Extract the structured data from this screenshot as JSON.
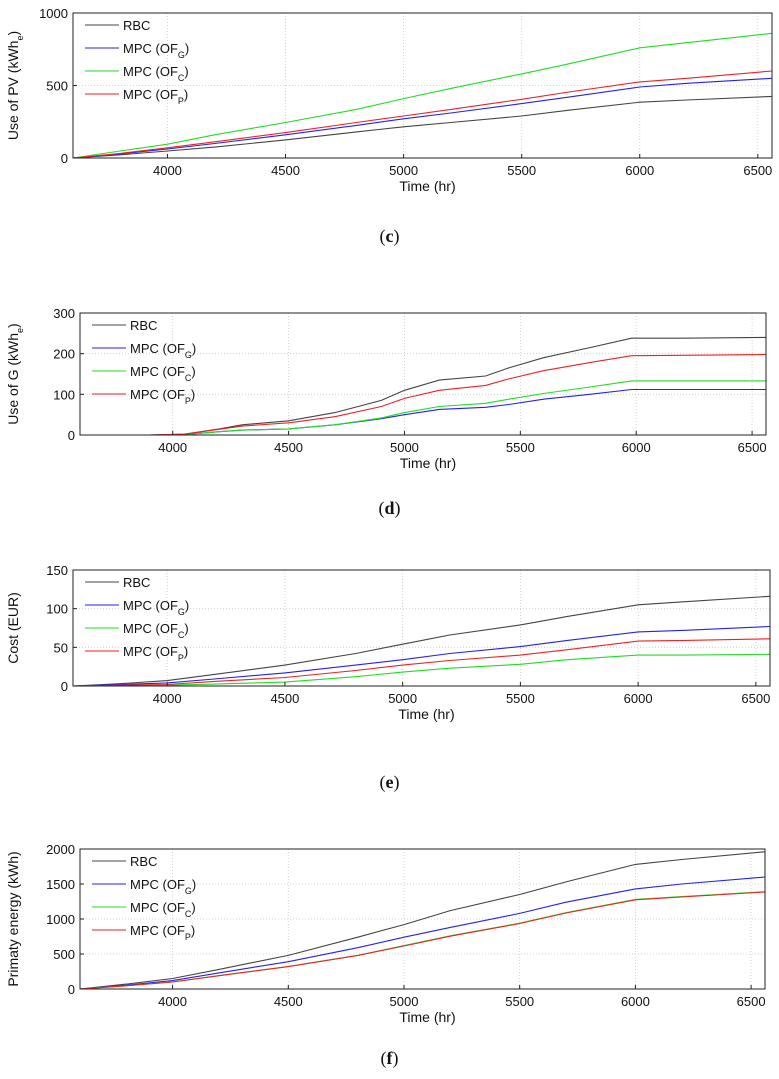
{
  "chart_data": [
    {
      "id": "c",
      "type": "line",
      "caption": "c",
      "title": "",
      "xlabel": "Time (hr)",
      "ylabel": "Use of PV (kWh",
      "ylabel_sub": "e",
      "ylabel_end": ")",
      "xlim": [
        3600,
        6560
      ],
      "ylim": [
        0,
        1000
      ],
      "xticks": [
        4000,
        4500,
        5000,
        5500,
        6000,
        6500
      ],
      "yticks": [
        0,
        500,
        1000
      ],
      "grid": true,
      "legend_position": "top-left",
      "x": [
        3600,
        3800,
        4000,
        4200,
        4500,
        4800,
        5000,
        5200,
        5500,
        5700,
        6000,
        6200,
        6560
      ],
      "series": [
        {
          "name": "RBC",
          "label_main": "RBC",
          "label_sub": "",
          "color": "#444444",
          "values": [
            0,
            22,
            48,
            75,
            125,
            180,
            215,
            245,
            290,
            330,
            385,
            400,
            425
          ]
        },
        {
          "name": "MPC (OFG)",
          "label_main": "MPC (OF",
          "label_sub": "G",
          "color": "#2222ee",
          "values": [
            0,
            28,
            62,
            100,
            160,
            225,
            270,
            310,
            375,
            420,
            490,
            515,
            550
          ]
        },
        {
          "name": "MPC (OFC)",
          "label_main": "MPC (OF",
          "label_sub": "C",
          "color": "#22dd22",
          "values": [
            0,
            48,
            95,
            160,
            245,
            335,
            410,
            480,
            580,
            650,
            760,
            795,
            860
          ]
        },
        {
          "name": "MPC (OFP)",
          "label_main": "MPC (OF",
          "label_sub": "P",
          "color": "#ee2222",
          "values": [
            0,
            32,
            70,
            112,
            175,
            245,
            290,
            335,
            405,
            455,
            525,
            550,
            600
          ]
        }
      ]
    },
    {
      "id": "d",
      "type": "line",
      "caption": "d",
      "title": "",
      "xlabel": "Time (hr)",
      "ylabel": "Use of G (kWh",
      "ylabel_sub": "e",
      "ylabel_end": ")",
      "xlim": [
        3600,
        6560
      ],
      "ylim": [
        0,
        300
      ],
      "xticks": [
        4000,
        4500,
        5000,
        5500,
        6000,
        6500
      ],
      "yticks": [
        0,
        100,
        200,
        300
      ],
      "grid": true,
      "legend_position": "top-left",
      "x": [
        3600,
        3900,
        4050,
        4200,
        4300,
        4500,
        4700,
        4900,
        5000,
        5150,
        5350,
        5450,
        5600,
        5800,
        5980,
        6200,
        6560
      ],
      "series": [
        {
          "name": "RBC",
          "label_main": "RBC",
          "label_sub": "",
          "color": "#444444",
          "values": [
            0,
            0,
            2,
            15,
            25,
            35,
            55,
            85,
            110,
            135,
            145,
            165,
            190,
            215,
            238,
            238,
            240
          ]
        },
        {
          "name": "MPC (OFG)",
          "label_main": "MPC (OF",
          "label_sub": "G",
          "color": "#2222ee",
          "values": [
            0,
            0,
            1,
            8,
            12,
            15,
            25,
            40,
            50,
            63,
            68,
            75,
            88,
            100,
            112,
            112,
            112
          ]
        },
        {
          "name": "MPC (OFC)",
          "label_main": "MPC (OF",
          "label_sub": "C",
          "color": "#22dd22",
          "values": [
            0,
            0,
            1,
            8,
            12,
            15,
            25,
            42,
            55,
            70,
            78,
            88,
            102,
            118,
            133,
            133,
            133
          ]
        },
        {
          "name": "MPC (OFP)",
          "label_main": "MPC (OF",
          "label_sub": "P",
          "color": "#ee2222",
          "values": [
            0,
            0,
            2,
            14,
            22,
            30,
            45,
            70,
            90,
            110,
            122,
            138,
            158,
            178,
            195,
            196,
            198
          ]
        }
      ]
    },
    {
      "id": "e",
      "type": "line",
      "caption": "e",
      "title": "",
      "xlabel": "Time (hr)",
      "ylabel": "Cost (EUR)",
      "ylabel_sub": "",
      "ylabel_end": "",
      "xlim": [
        3600,
        6560
      ],
      "ylim": [
        0,
        150
      ],
      "xticks": [
        4000,
        4500,
        5000,
        5500,
        6000,
        6500
      ],
      "yticks": [
        0,
        50,
        100,
        150
      ],
      "grid": true,
      "legend_position": "top-left",
      "x": [
        3600,
        3800,
        4000,
        4200,
        4500,
        4800,
        5000,
        5200,
        5500,
        5700,
        6000,
        6200,
        6560
      ],
      "series": [
        {
          "name": "RBC",
          "label_main": "RBC",
          "label_sub": "",
          "color": "#444444",
          "values": [
            0,
            3,
            7,
            15,
            27,
            42,
            54,
            66,
            79,
            90,
            105,
            109,
            116
          ]
        },
        {
          "name": "MPC (OFG)",
          "label_main": "MPC (OF",
          "label_sub": "G",
          "color": "#2222ee",
          "values": [
            0,
            2,
            4,
            9,
            17,
            27,
            34,
            42,
            51,
            59,
            70,
            72,
            77
          ]
        },
        {
          "name": "MPC (OFC)",
          "label_main": "MPC (OF",
          "label_sub": "C",
          "color": "#22dd22",
          "values": [
            0,
            0.5,
            1,
            2.5,
            5,
            12,
            18,
            23,
            28,
            34,
            40,
            40,
            41
          ]
        },
        {
          "name": "MPC (OFP)",
          "label_main": "MPC (OF",
          "label_sub": "P",
          "color": "#ee2222",
          "values": [
            0,
            1,
            2,
            6,
            11,
            20,
            27,
            33,
            40,
            47,
            58,
            59,
            61
          ]
        }
      ]
    },
    {
      "id": "f",
      "type": "line",
      "caption": "f",
      "title": "",
      "xlabel": "Time (hr)",
      "ylabel": "Primaty energy (kWh)",
      "ylabel_sub": "",
      "ylabel_end": "",
      "xlim": [
        3600,
        6560
      ],
      "ylim": [
        0,
        2000
      ],
      "xticks": [
        4000,
        4500,
        5000,
        5500,
        6000,
        6500
      ],
      "yticks": [
        0,
        500,
        1000,
        1500,
        2000
      ],
      "grid": true,
      "legend_position": "top-left",
      "x": [
        3600,
        3800,
        4000,
        4200,
        4500,
        4800,
        5000,
        5200,
        5500,
        5700,
        6000,
        6200,
        6560
      ],
      "series": [
        {
          "name": "RBC",
          "label_main": "RBC",
          "label_sub": "",
          "color": "#444444",
          "values": [
            0,
            70,
            150,
            280,
            480,
            740,
            920,
            1120,
            1350,
            1530,
            1780,
            1850,
            1960
          ]
        },
        {
          "name": "MPC (OFG)",
          "label_main": "MPC (OF",
          "label_sub": "G",
          "color": "#2222ee",
          "values": [
            0,
            55,
            120,
            230,
            390,
            590,
            740,
            880,
            1080,
            1240,
            1430,
            1500,
            1600
          ]
        },
        {
          "name": "MPC (OFC)",
          "label_main": "MPC (OF",
          "label_sub": "C",
          "color": "#22dd22",
          "values": [
            0,
            45,
            100,
            190,
            320,
            480,
            620,
            760,
            940,
            1090,
            1280,
            1320,
            1390
          ]
        },
        {
          "name": "MPC (OFP)",
          "label_main": "MPC (OF",
          "label_sub": "P",
          "color": "#ee2222",
          "values": [
            0,
            45,
            100,
            190,
            320,
            480,
            615,
            755,
            935,
            1085,
            1275,
            1315,
            1385
          ]
        }
      ]
    }
  ]
}
